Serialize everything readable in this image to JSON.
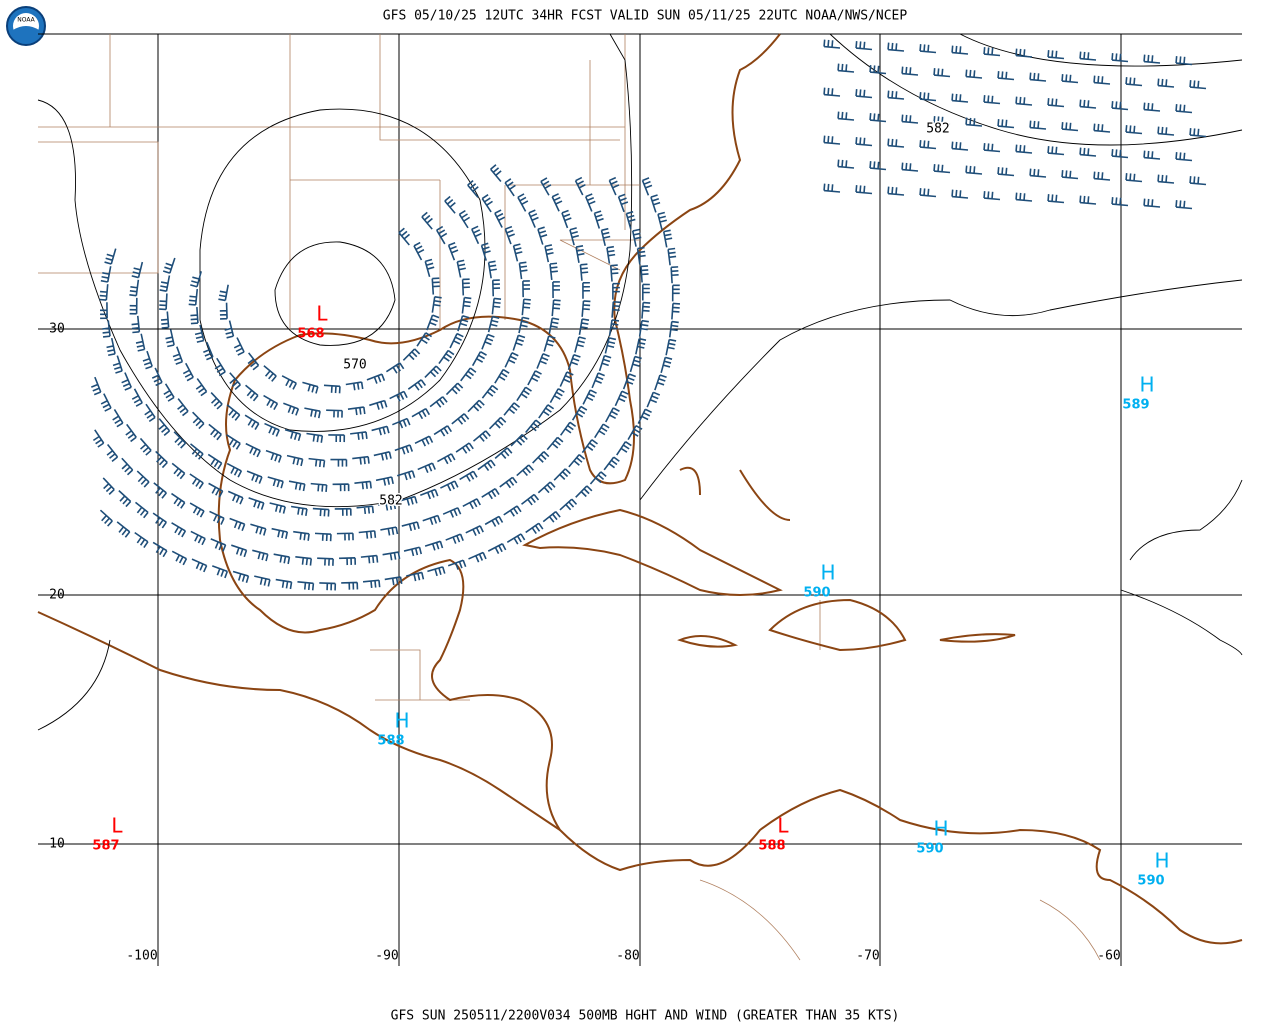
{
  "header": {
    "title": "GFS 05/10/25 12UTC 34HR FCST VALID SUN 05/11/25 22UTC NOAA/NWS/NCEP",
    "logo": "NOAA"
  },
  "footer": {
    "title": "GFS SUN 250511/2200V034 500MB HGHT AND WIND (GREATER THAN 35 KTS)"
  },
  "grid": {
    "lat_labels": [
      "30",
      "20",
      "10"
    ],
    "lon_labels": [
      "-100",
      "-90",
      "-80",
      "-70",
      "-60"
    ]
  },
  "centers": [
    {
      "symbol": "L",
      "value": "568",
      "color": "#ff0000"
    },
    {
      "symbol": "L",
      "value": "587",
      "color": "#ff0000"
    },
    {
      "symbol": "L",
      "value": "588",
      "color": "#ff0000"
    },
    {
      "symbol": "H",
      "value": "589",
      "color": "#00b0f0"
    },
    {
      "symbol": "H",
      "value": "590",
      "color": "#00b0f0"
    },
    {
      "symbol": "H",
      "value": "588",
      "color": "#00b0f0"
    },
    {
      "symbol": "H",
      "value": "590",
      "color": "#00b0f0"
    },
    {
      "symbol": "H",
      "value": "590",
      "color": "#00b0f0"
    }
  ],
  "contour_labels": [
    "570",
    "582",
    "582"
  ]
}
